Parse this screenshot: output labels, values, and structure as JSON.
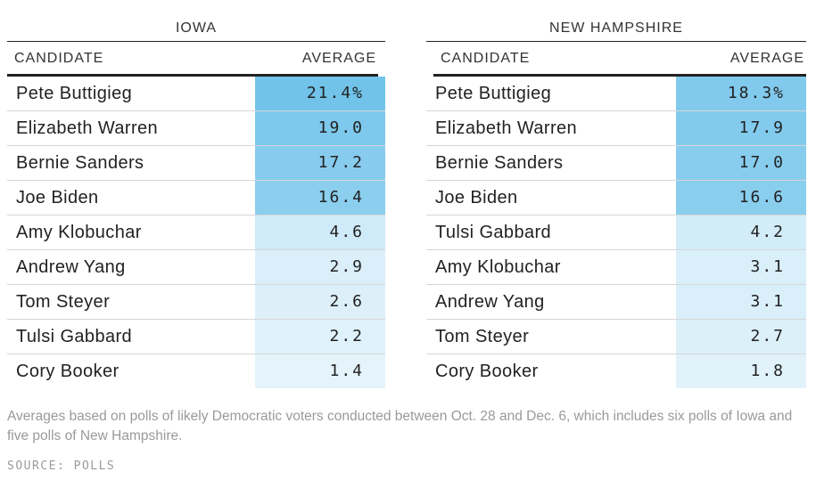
{
  "chart_data": {
    "type": "table",
    "tables": [
      {
        "title": "IOWA",
        "columns": [
          "CANDIDATE",
          "AVERAGE"
        ],
        "rows": [
          {
            "candidate": "Pete Buttigieg",
            "average": 21.4,
            "display": "21.4%"
          },
          {
            "candidate": "Elizabeth Warren",
            "average": 19.0,
            "display": "19.0"
          },
          {
            "candidate": "Bernie Sanders",
            "average": 17.2,
            "display": "17.2"
          },
          {
            "candidate": "Joe Biden",
            "average": 16.4,
            "display": "16.4"
          },
          {
            "candidate": "Amy Klobuchar",
            "average": 4.6,
            "display": "4.6"
          },
          {
            "candidate": "Andrew Yang",
            "average": 2.9,
            "display": "2.9"
          },
          {
            "candidate": "Tom Steyer",
            "average": 2.6,
            "display": "2.6"
          },
          {
            "candidate": "Tulsi Gabbard",
            "average": 2.2,
            "display": "2.2"
          },
          {
            "candidate": "Cory Booker",
            "average": 1.4,
            "display": "1.4"
          }
        ]
      },
      {
        "title": "NEW HAMPSHIRE",
        "columns": [
          "CANDIDATE",
          "AVERAGE"
        ],
        "rows": [
          {
            "candidate": "Pete Buttigieg",
            "average": 18.3,
            "display": "18.3%"
          },
          {
            "candidate": "Elizabeth Warren",
            "average": 17.9,
            "display": "17.9"
          },
          {
            "candidate": "Bernie Sanders",
            "average": 17.0,
            "display": "17.0"
          },
          {
            "candidate": "Joe Biden",
            "average": 16.6,
            "display": "16.6"
          },
          {
            "candidate": "Tulsi Gabbard",
            "average": 4.2,
            "display": "4.2"
          },
          {
            "candidate": "Amy Klobuchar",
            "average": 3.1,
            "display": "3.1"
          },
          {
            "candidate": "Andrew Yang",
            "average": 3.1,
            "display": "3.1"
          },
          {
            "candidate": "Tom Steyer",
            "average": 2.7,
            "display": "2.7"
          },
          {
            "candidate": "Cory Booker",
            "average": 1.8,
            "display": "1.8"
          }
        ]
      }
    ],
    "color_scale": {
      "low": "#f2f9fd",
      "high": "#6ec2ea",
      "max_value": 22
    }
  },
  "footnote": "Averages based on polls of likely Democratic voters conducted between Oct. 28 and Dec. 6, which includes six polls of Iowa and five polls of New Hampshire.",
  "source": "SOURCE: POLLS"
}
